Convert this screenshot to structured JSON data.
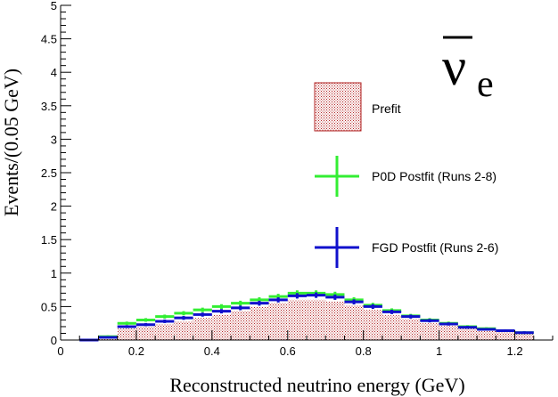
{
  "chart_data": {
    "type": "histogram",
    "title": "",
    "xlabel": "Reconstructed neutrino energy (GeV)",
    "ylabel": "Events/(0.05 GeV)",
    "xlim": [
      0,
      1.3
    ],
    "ylim": [
      0,
      5
    ],
    "x_ticks": [
      "0",
      "0.2",
      "0.4",
      "0.6",
      "0.8",
      "1",
      "1.2"
    ],
    "y_ticks": [
      "0",
      "0.5",
      "1",
      "1.5",
      "2",
      "2.5",
      "3",
      "3.5",
      "4",
      "4.5",
      "5"
    ],
    "bin_width": 0.05,
    "bin_centers": [
      0.075,
      0.125,
      0.175,
      0.225,
      0.275,
      0.325,
      0.375,
      0.425,
      0.475,
      0.525,
      0.575,
      0.625,
      0.675,
      0.725,
      0.775,
      0.825,
      0.875,
      0.925,
      0.975,
      1.025,
      1.075,
      1.125,
      1.175,
      1.225
    ],
    "annotation": {
      "symbol": "ν",
      "subscript": "e",
      "overline": true
    },
    "legend_position": "center-right",
    "series": [
      {
        "name": "Prefit",
        "style": "hatched-band",
        "color": "#b22222",
        "values": [
          0.0,
          0.04,
          0.17,
          0.2,
          0.24,
          0.28,
          0.33,
          0.38,
          0.43,
          0.5,
          0.55,
          0.6,
          0.6,
          0.58,
          0.52,
          0.45,
          0.37,
          0.31,
          0.25,
          0.21,
          0.17,
          0.15,
          0.13,
          0.1
        ]
      },
      {
        "name": "P0D Postfit (Runs 2-8)",
        "style": "error-cross",
        "color": "#33ee33",
        "values": [
          0.0,
          0.05,
          0.25,
          0.3,
          0.35,
          0.4,
          0.45,
          0.5,
          0.55,
          0.6,
          0.65,
          0.7,
          0.7,
          0.68,
          0.6,
          0.52,
          0.44,
          0.36,
          0.3,
          0.25,
          0.2,
          0.17,
          0.14,
          0.11
        ]
      },
      {
        "name": "FGD Postfit (Runs 2-6)",
        "style": "error-cross",
        "color": "#1010cc",
        "values": [
          0.0,
          0.04,
          0.2,
          0.23,
          0.28,
          0.33,
          0.38,
          0.43,
          0.48,
          0.55,
          0.6,
          0.66,
          0.67,
          0.64,
          0.57,
          0.5,
          0.42,
          0.35,
          0.29,
          0.24,
          0.19,
          0.16,
          0.14,
          0.11
        ]
      }
    ]
  }
}
